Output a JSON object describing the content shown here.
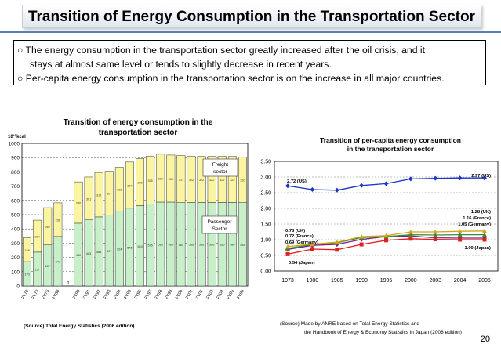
{
  "slide": {
    "title": "Transition of Energy Consumption in the Transportation Sector",
    "bullets": [
      "○ The energy consumption in the transportation sector greatly increased after the oil crisis, and it",
      "stays at almost same level or tends to slightly decrease in recent years.",
      "○ Per-capita energy consumption in the transportation sector is on the increase in all major countries."
    ],
    "page_number": "20"
  },
  "colors": {
    "freight": "#fbf5a2",
    "passenger": "#c8f0c8",
    "bar_stroke": "#333333",
    "title_rule": "#5a7fb5",
    "us": "#1a35c8",
    "germany": "#7a1f7a",
    "france": "#3a8a3a",
    "uk": "#d2a51a",
    "japan": "#e02020"
  },
  "chart_data": [
    {
      "type": "bar",
      "stacked": true,
      "title": "Transition of energy consumption in the",
      "title_line2": "transportation sector",
      "unit": "10¹⁰kcal",
      "ylim": [
        0,
        1000
      ],
      "yticks": [
        "0",
        "100",
        "200",
        "300",
        "400",
        "500",
        "600",
        "700",
        "800",
        "900",
        "1000"
      ],
      "categories": [
        "1970",
        "1973",
        "1975",
        "1980",
        "",
        "1990",
        "1991",
        "1992",
        "1993",
        "1994",
        "1995",
        "1996",
        "1997",
        "1998",
        "1999",
        "2000",
        "2001",
        "2002",
        "2003",
        "2004",
        "2005",
        "2006"
      ],
      "xtick_labels": [
        "FY70",
        "FY73",
        "FY75",
        "FY80",
        "",
        "FY90",
        "FY91",
        "FY92",
        "FY93",
        "FY94",
        "FY95",
        "FY96",
        "FY97",
        "FY98",
        "FY99",
        "FY00",
        "FY01",
        "FY02",
        "FY03",
        "FY04",
        "FY05",
        "FY06"
      ],
      "series": [
        {
          "name": "Passenger Sector",
          "values": [
            170,
            237,
            287,
            347,
            0,
            440,
            463,
            484,
            497,
            524,
            545,
            563,
            575,
            588,
            588,
            584,
            586,
            586,
            586,
            586,
            586,
            584
          ]
        },
        {
          "name": "Freight sector",
          "values": [
            168,
            224,
            262,
            236,
            0,
            290,
            301,
            312,
            307,
            308,
            324,
            330,
            336,
            336,
            330,
            331,
            322,
            322,
            322,
            322,
            322,
            320
          ]
        }
      ],
      "segment_labels": {
        "passenger": [
          "170",
          "237",
          "287",
          "347",
          "",
          "440",
          "463",
          "484",
          "497",
          "524",
          "545",
          "563",
          "575",
          "588",
          "588",
          "584",
          "586",
          "586",
          "586",
          "586",
          "586",
          "584"
        ],
        "freight": [
          "168",
          "224",
          "262",
          "236",
          "",
          "290",
          "301",
          "312",
          "307",
          "308",
          "324",
          "330",
          "336",
          "336",
          "330",
          "331",
          "322",
          "322",
          "322",
          "322",
          "322",
          "320"
        ]
      },
      "annotations": [
        "Freight sector",
        "Passenger Sector"
      ],
      "source": "(Source) Total Energy Statistics (2006 edition)"
    },
    {
      "type": "line",
      "title": "Transition of per-capita energy consumption",
      "title_line2": "in the transportation sector",
      "x": [
        "1973",
        "1980",
        "1985",
        "1990",
        "1995",
        "2000",
        "2003",
        "2004",
        "2005"
      ],
      "ylim": [
        0,
        3.5
      ],
      "yticks": [
        "0.00",
        "0.50",
        "1.00",
        "1.50",
        "2.00",
        "2.50",
        "3.00",
        "3.50"
      ],
      "series": [
        {
          "name": "US",
          "values": [
            2.72,
            2.6,
            2.58,
            2.73,
            2.79,
            2.94,
            2.96,
            2.97,
            2.97
          ]
        },
        {
          "name": "Germany",
          "values": [
            0.69,
            0.82,
            0.85,
            1.01,
            1.1,
            1.12,
            1.06,
            1.05,
            1.05
          ]
        },
        {
          "name": "France",
          "values": [
            0.72,
            0.85,
            0.9,
            1.07,
            1.1,
            1.16,
            1.15,
            1.16,
            1.16
          ]
        },
        {
          "name": "UK",
          "values": [
            0.78,
            0.86,
            0.92,
            1.1,
            1.13,
            1.25,
            1.25,
            1.27,
            1.28
          ]
        },
        {
          "name": "Japan",
          "values": [
            0.54,
            0.7,
            0.68,
            0.85,
            0.98,
            1.03,
            1.01,
            1.0,
            1.0
          ]
        }
      ],
      "data_labels": [
        "2.72 (US)",
        "2.97 (US)",
        "0.78 (UK)",
        "0.72 (France)",
        "0.69 (Germany)",
        "0.54 (Japan)",
        "1.28 (UK)",
        "1.16 (France)",
        "1.05 (Germany)",
        "1.00 (Japan)"
      ],
      "source_line1": "(Source) Made  by ANRE based on Total Energy Statistics and",
      "source_line2": "the Handbook  of Energy & Economy Statistics in Japan (2008 edition)"
    }
  ]
}
